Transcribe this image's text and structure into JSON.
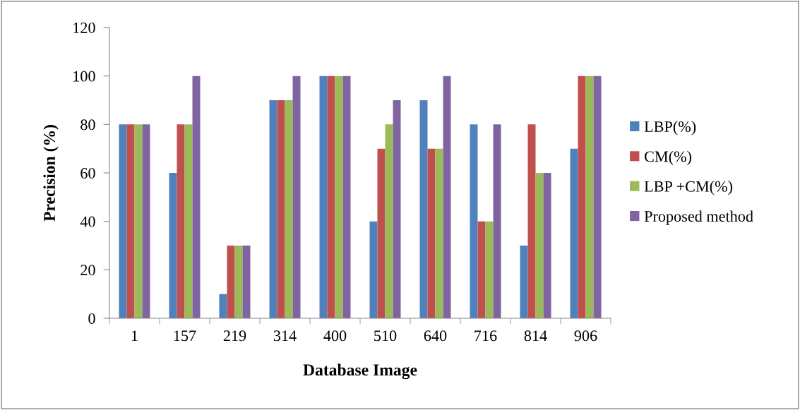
{
  "chart_data": {
    "type": "bar",
    "xlabel": "Database Image",
    "ylabel": "Precision (%)",
    "categories": [
      "1",
      "157",
      "219",
      "314",
      "400",
      "510",
      "640",
      "716",
      "814",
      "906"
    ],
    "series": [
      {
        "name": "LBP(%)",
        "color": "#4f81bd",
        "values": [
          80,
          60,
          10,
          90,
          100,
          40,
          90,
          80,
          30,
          70
        ]
      },
      {
        "name": "CM(%)",
        "color": "#c0504d",
        "values": [
          80,
          80,
          30,
          90,
          100,
          70,
          70,
          40,
          80,
          100
        ]
      },
      {
        "name": "LBP +CM(%)",
        "color": "#9bbb59",
        "values": [
          80,
          80,
          30,
          90,
          100,
          80,
          70,
          40,
          60,
          100
        ]
      },
      {
        "name": "Proposed method",
        "color": "#8064a2",
        "values": [
          80,
          100,
          30,
          100,
          100,
          90,
          100,
          80,
          60,
          100
        ]
      }
    ],
    "ylim": [
      0,
      120
    ],
    "yticks": [
      0,
      20,
      40,
      60,
      80,
      100,
      120
    ],
    "grid": false,
    "legend": "right"
  }
}
